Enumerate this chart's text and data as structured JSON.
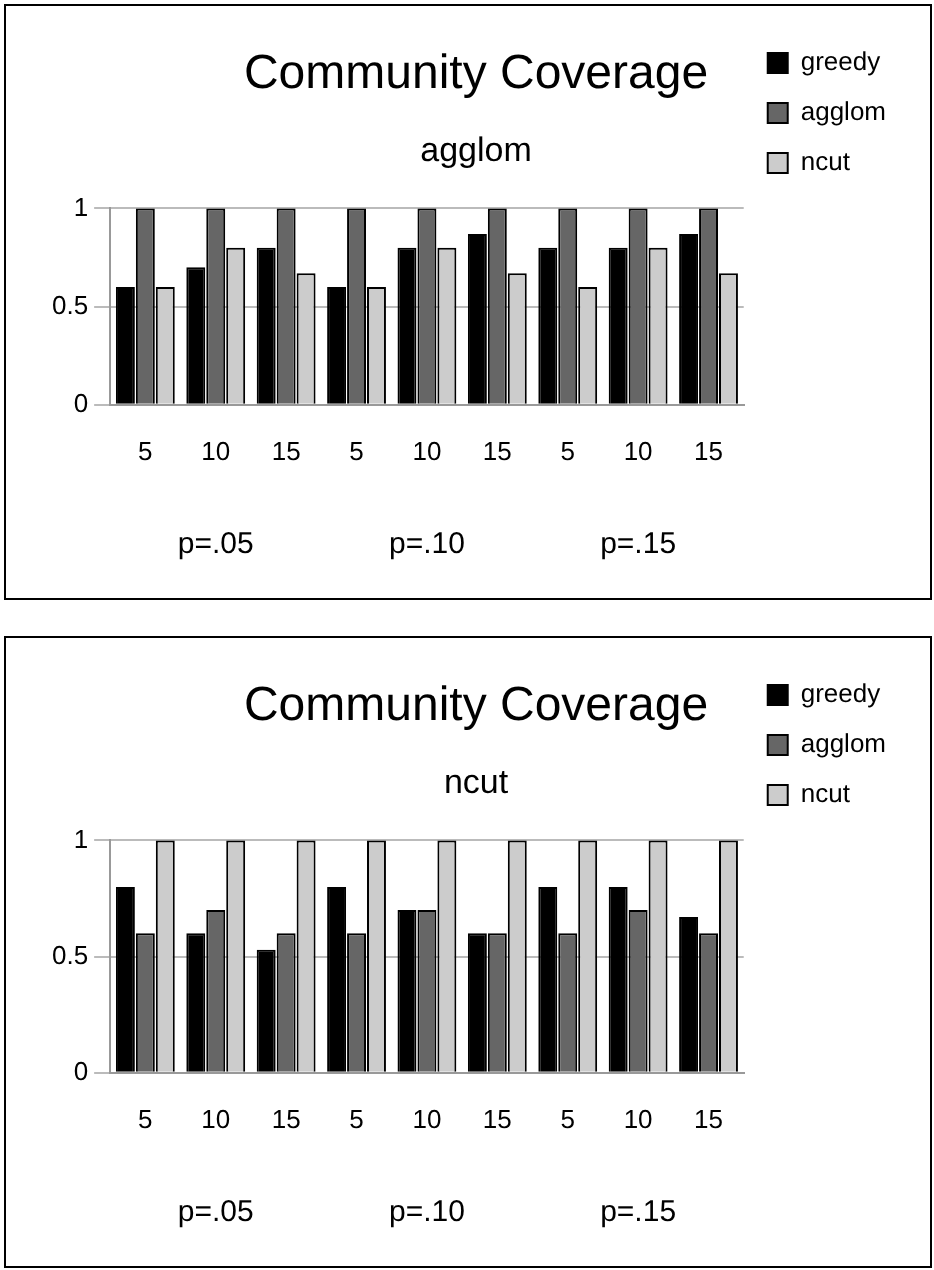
{
  "chart_data": [
    {
      "type": "bar",
      "title": "Community Coverage",
      "subtitle": "agglom",
      "categories": [
        "5",
        "10",
        "15",
        "5",
        "10",
        "15",
        "5",
        "10",
        "15"
      ],
      "series": [
        {
          "name": "greedy",
          "color": "#000000",
          "values": [
            0.6,
            0.7,
            0.8,
            0.6,
            0.8,
            0.87,
            0.8,
            0.8,
            0.87
          ]
        },
        {
          "name": "agglom",
          "color": "#666666",
          "values": [
            1,
            1,
            1,
            1,
            1,
            1,
            1,
            1,
            1
          ]
        },
        {
          "name": "ncut",
          "color": "#cccccc",
          "values": [
            0.6,
            0.8,
            0.67,
            0.6,
            0.8,
            0.67,
            0.6,
            0.8,
            0.67
          ]
        }
      ],
      "ylim": [
        0,
        1
      ],
      "yticks": [
        0,
        0.5,
        1
      ],
      "grid": "y",
      "legend": "right",
      "annotations": [
        "p=.05",
        "p=.10",
        "p=.15"
      ]
    },
    {
      "type": "bar",
      "title": "Community Coverage",
      "subtitle": "ncut",
      "categories": [
        "5",
        "10",
        "15",
        "5",
        "10",
        "15",
        "5",
        "10",
        "15"
      ],
      "series": [
        {
          "name": "greedy",
          "color": "#000000",
          "values": [
            0.8,
            0.6,
            0.53,
            0.8,
            0.7,
            0.6,
            0.8,
            0.8,
            0.67
          ]
        },
        {
          "name": "agglom",
          "color": "#666666",
          "values": [
            0.6,
            0.7,
            0.6,
            0.6,
            0.7,
            0.6,
            0.6,
            0.7,
            0.6
          ]
        },
        {
          "name": "ncut",
          "color": "#cccccc",
          "values": [
            1,
            1,
            1,
            1,
            1,
            1,
            1,
            1,
            1
          ]
        }
      ],
      "ylim": [
        0,
        1
      ],
      "yticks": [
        0,
        0.5,
        1
      ],
      "grid": "y",
      "legend": "right",
      "annotations": [
        "p=.05",
        "p=.10",
        "p=.15"
      ]
    }
  ]
}
